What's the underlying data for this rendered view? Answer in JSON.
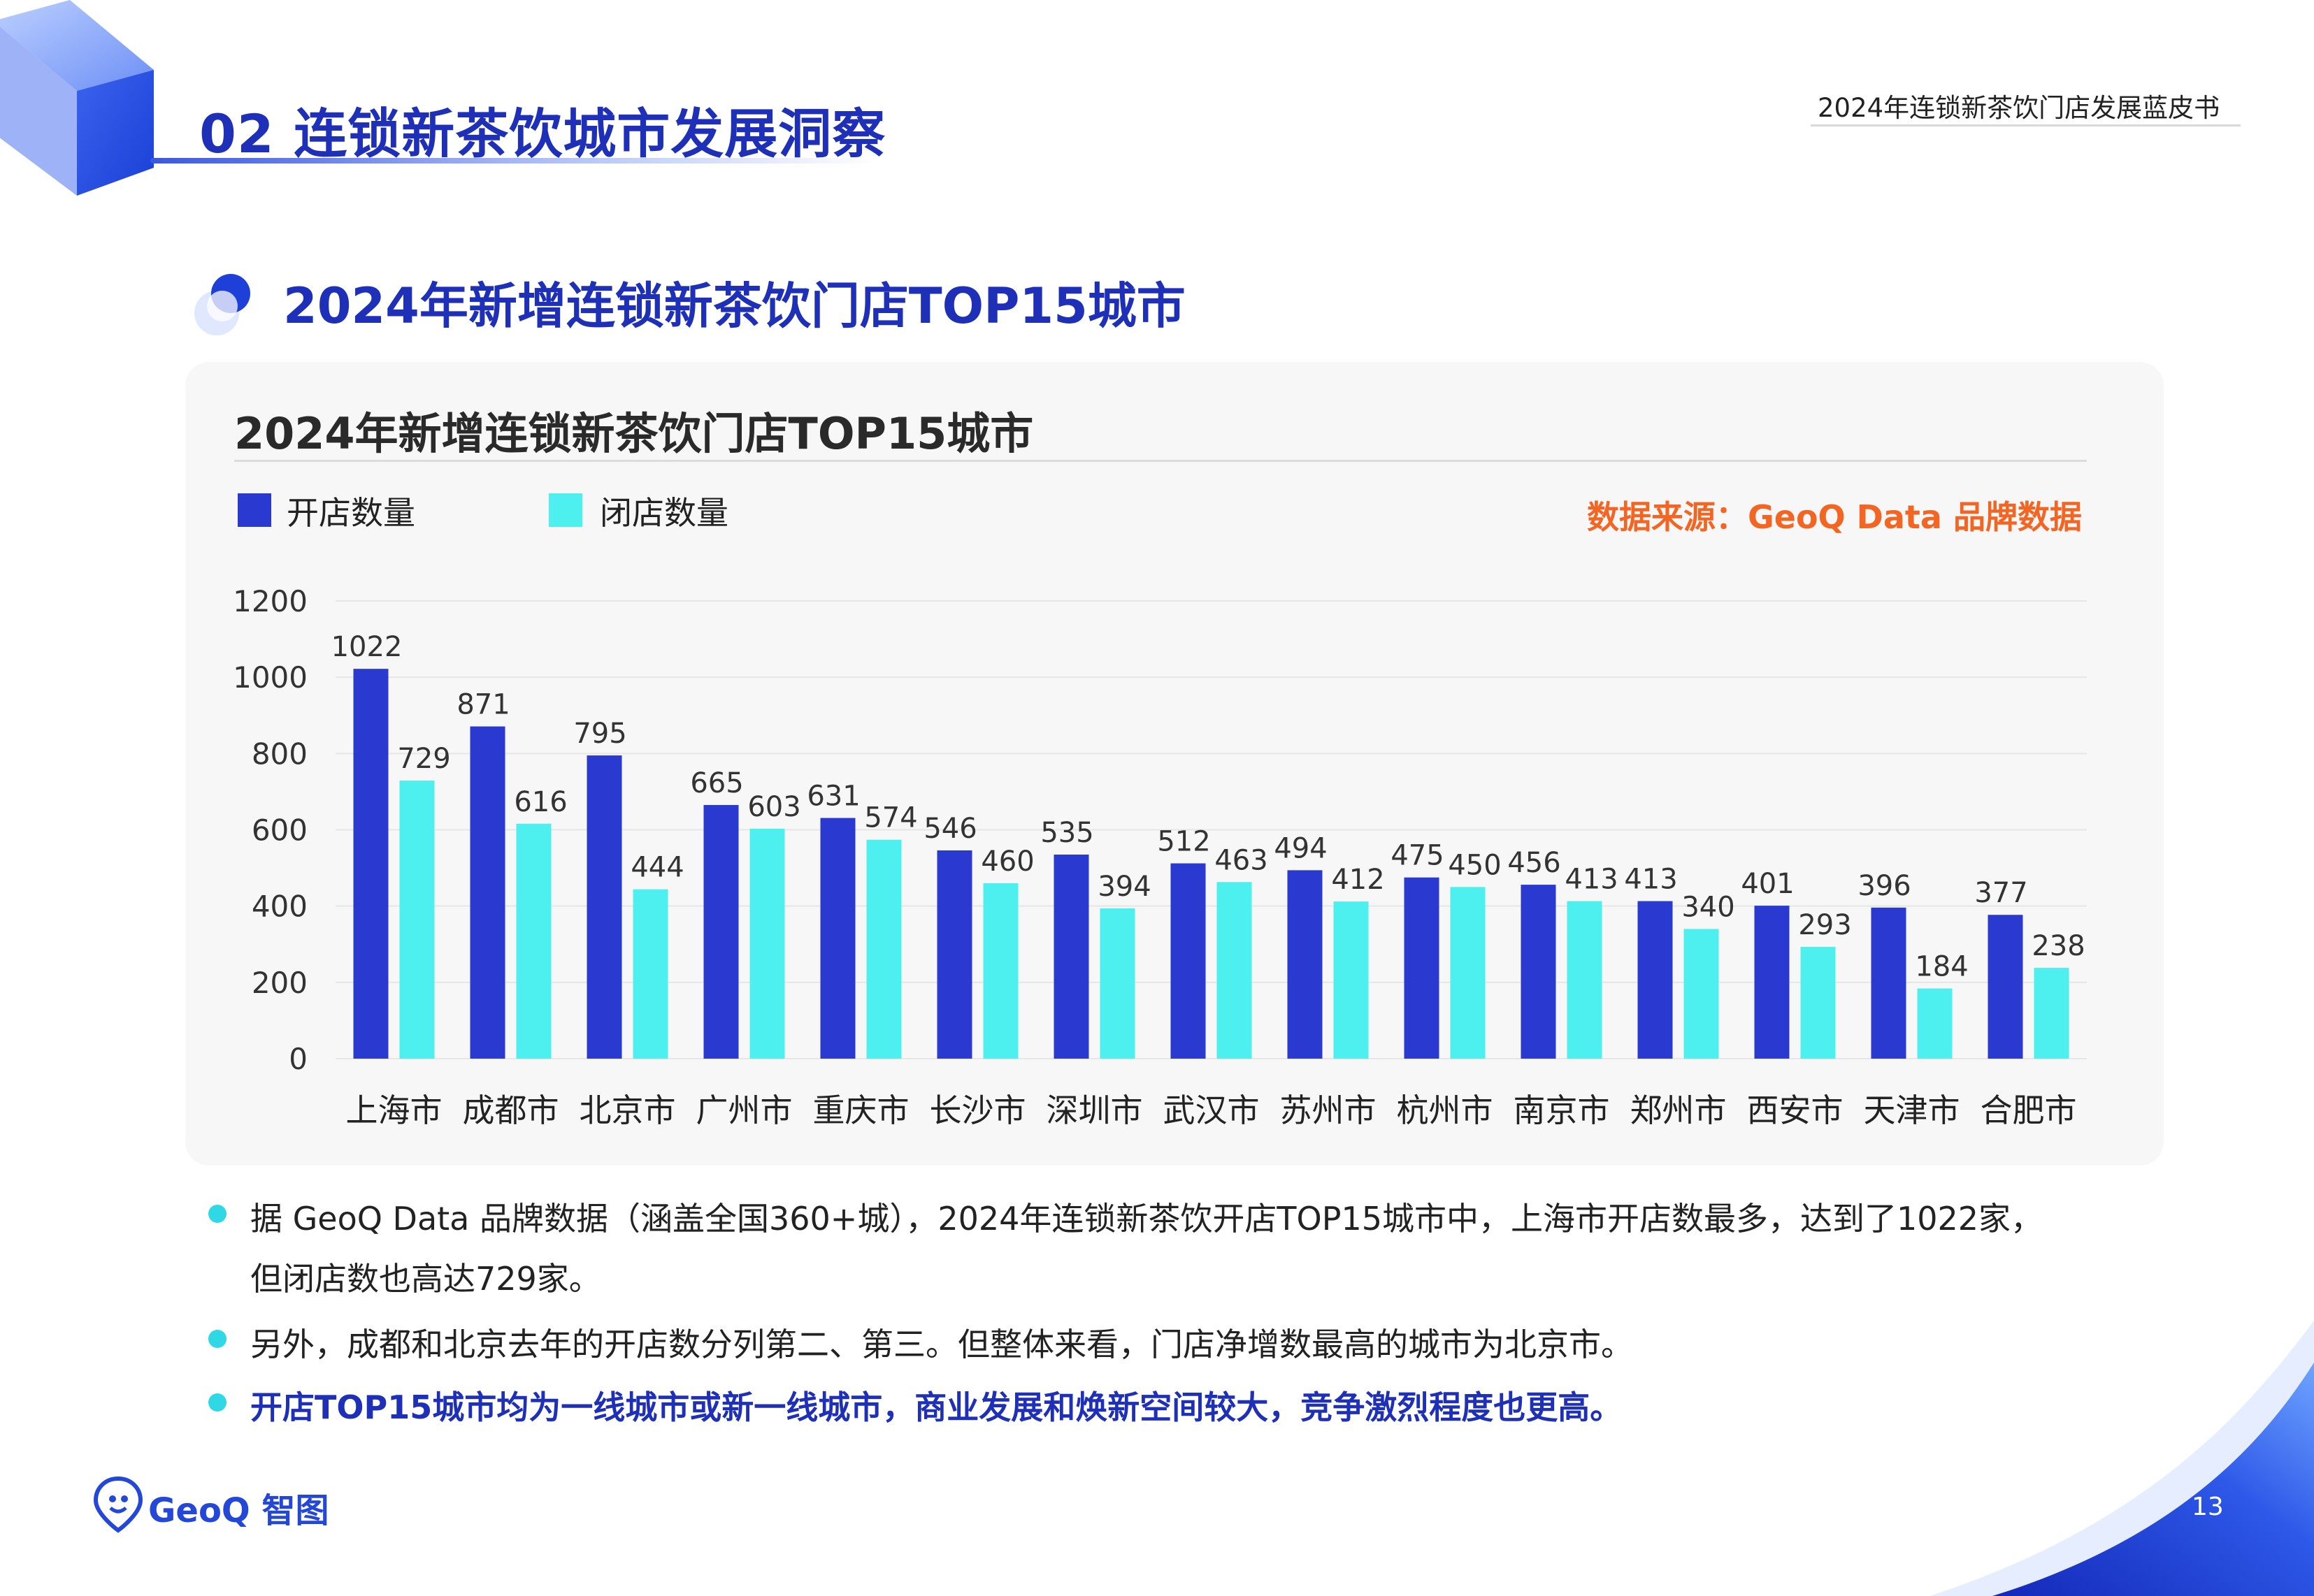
{
  "header": {
    "section_title": "02 连锁新茶饮城市发展洞察",
    "doc_title": "2024年连锁新茶饮门店发展蓝皮书"
  },
  "subtitle": "2024年新增连锁新茶饮门店TOP15城市",
  "chart_data": {
    "type": "bar",
    "title": "2024年新增连锁新茶饮门店TOP15城市",
    "source": "数据来源：GeoQ Data 品牌数据",
    "categories": [
      "上海市",
      "成都市",
      "北京市",
      "广州市",
      "重庆市",
      "长沙市",
      "深圳市",
      "武汉市",
      "苏州市",
      "杭州市",
      "南京市",
      "郑州市",
      "西安市",
      "天津市",
      "合肥市"
    ],
    "series": [
      {
        "name": "开店数量",
        "color": "#2a3ad1",
        "values": [
          1022,
          871,
          795,
          665,
          631,
          546,
          535,
          512,
          494,
          475,
          456,
          413,
          401,
          396,
          377
        ]
      },
      {
        "name": "闭店数量",
        "color": "#4df0ef",
        "values": [
          729,
          616,
          444,
          603,
          574,
          460,
          394,
          463,
          412,
          450,
          413,
          340,
          293,
          184,
          238
        ]
      }
    ],
    "ylim": [
      0,
      1200
    ],
    "yticks": [
      0,
      200,
      400,
      600,
      800,
      1000,
      1200
    ],
    "legend_position": "top-left",
    "grid": true,
    "data_labels": true
  },
  "notes": {
    "p1_line1": "据 GeoQ Data 品牌数据（涵盖全国360+城），2024年连锁新茶饮开店TOP15城市中，上海市开店数最多，达到了1022家，",
    "p1_line2": "但闭店数也高达729家。",
    "p2": "另外，成都和北京去年的开店数分列第二、第三。但整体来看，门店净增数最高的城市为北京市。",
    "p3": "开店TOP15城市均为一线城市或新一线城市，商业发展和焕新空间较大，竞争激烈程度也更高。"
  },
  "footer": {
    "logo_text": "GeoQ 智图",
    "page_number": "13"
  },
  "colors": {
    "brand_blue": "#1e2fb8",
    "open_bar": "#2a3ad1",
    "close_bar": "#4df0ef",
    "source_orange": "#f26522",
    "bullet_cyan": "#2fd8e4"
  }
}
